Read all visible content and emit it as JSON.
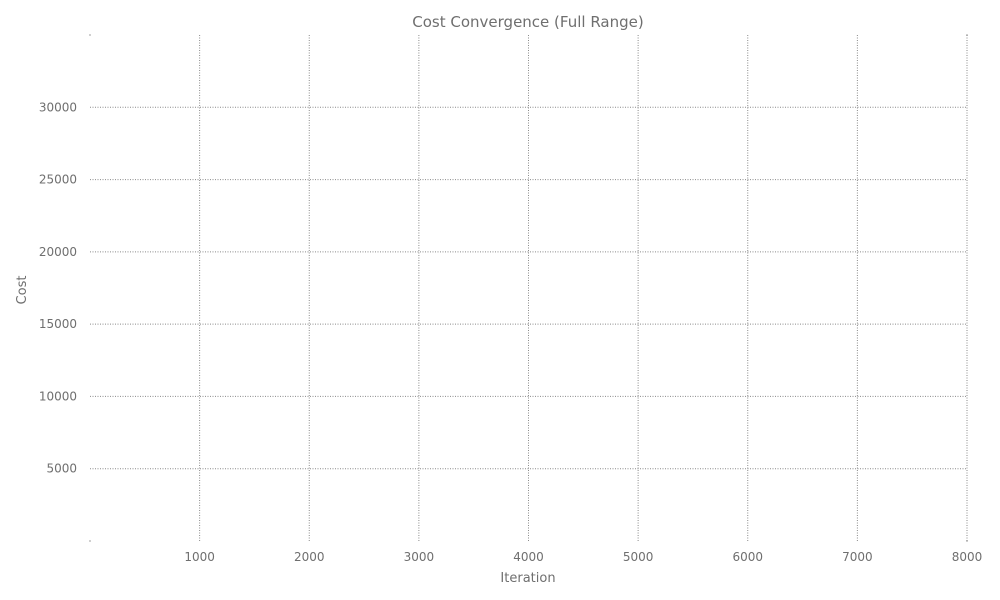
{
  "chart_data": {
    "type": "line",
    "title": "Cost Convergence (Full Range)",
    "xlabel": "Iteration",
    "ylabel": "Cost",
    "x": [],
    "series": [],
    "xlim": [
      0,
      8000
    ],
    "ylim": [
      0,
      35000
    ],
    "xticks": [
      1000,
      2000,
      3000,
      4000,
      5000,
      6000,
      7000,
      8000
    ],
    "yticks": [
      5000,
      10000,
      15000,
      20000,
      25000,
      30000
    ],
    "grid": true,
    "grid_style": "dotted",
    "legend": "none",
    "colors": {
      "text": "#6f6f6f",
      "grid": "#8a8a8a",
      "background": "#ffffff"
    }
  }
}
